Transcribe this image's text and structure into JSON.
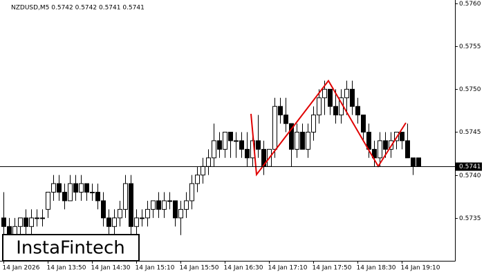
{
  "chart_data": {
    "type": "candlestick",
    "title": "NZDUSD,M5  0.5742 0.5742 0.5741 0.5741",
    "watermark": "InstaFintech",
    "categories": [
      "14 Jan 2026",
      null,
      null,
      null,
      null,
      null,
      null,
      null,
      "14 Jan 13:50",
      null,
      null,
      null,
      null,
      null,
      null,
      null,
      "14 Jan 14:30",
      null,
      null,
      null,
      null,
      null,
      null,
      null,
      "14 Jan 15:10",
      null,
      null,
      null,
      null,
      null,
      null,
      null,
      "14 Jan 15:50",
      null,
      null,
      null,
      null,
      null,
      null,
      null,
      "14 Jan 16:30",
      null,
      null,
      null,
      null,
      null,
      null,
      null,
      "14 Jan 17:10",
      null,
      null,
      null,
      null,
      null,
      null,
      null,
      "14 Jan 17:50",
      null,
      null,
      null,
      null,
      null,
      null,
      null,
      "14 Jan 18:30",
      null,
      null,
      null,
      null,
      null,
      null,
      null,
      "14 Jan 19:10",
      null,
      null,
      null
    ],
    "open": [
      0.5735,
      0.5734,
      0.5733,
      0.5734,
      0.5735,
      0.5734,
      0.5735,
      0.5735,
      0.5736,
      0.5738,
      0.5739,
      0.5738,
      0.5737,
      0.5739,
      0.5738,
      0.5739,
      0.5738,
      0.5738,
      0.5737,
      0.5735,
      0.5734,
      0.5735,
      0.5736,
      0.5739,
      0.5734,
      0.5735,
      0.5735,
      0.5736,
      0.5737,
      0.5736,
      0.5737,
      0.5737,
      0.5735,
      0.5736,
      0.5737,
      0.5739,
      0.574,
      0.5741,
      0.5742,
      0.5744,
      0.5743,
      0.5745,
      0.5744,
      0.5744,
      0.5743,
      0.5742,
      0.5744,
      0.5743,
      0.5741,
      0.5743,
      0.5748,
      0.5747,
      0.5746,
      0.5743,
      0.5745,
      0.5743,
      0.5745,
      0.5747,
      0.5749,
      0.575,
      0.5748,
      0.5747,
      0.5749,
      0.575,
      0.5748,
      0.5747,
      0.5745,
      0.5743,
      0.5742,
      0.5744,
      0.5743,
      0.5744,
      0.5745,
      0.5744,
      0.5742,
      0.5742
    ],
    "high": [
      0.5738,
      0.5735,
      0.5735,
      0.5735,
      0.5736,
      0.5736,
      0.5736,
      0.5736,
      0.5738,
      0.574,
      0.574,
      0.5739,
      0.574,
      0.574,
      0.574,
      0.5739,
      0.5739,
      0.5739,
      0.5738,
      0.5736,
      0.5736,
      0.5737,
      0.574,
      0.574,
      0.5736,
      0.5736,
      0.5737,
      0.5737,
      0.5738,
      0.5738,
      0.5738,
      0.5737,
      0.5737,
      0.5738,
      0.574,
      0.5741,
      0.5742,
      0.5743,
      0.5746,
      0.5745,
      0.5745,
      0.5745,
      0.5745,
      0.5745,
      0.5745,
      0.5745,
      0.5747,
      0.5744,
      0.5743,
      0.5749,
      0.5749,
      0.5749,
      0.5746,
      0.5746,
      0.5746,
      0.5746,
      0.5748,
      0.575,
      0.5751,
      0.575,
      0.575,
      0.575,
      0.5751,
      0.5751,
      0.5749,
      0.5747,
      0.5746,
      0.5744,
      0.5745,
      0.5745,
      0.5745,
      0.5745,
      0.5745,
      0.5746,
      0.5742,
      0.5742
    ],
    "low": [
      0.5732,
      0.5732,
      0.5732,
      0.5733,
      0.5733,
      0.5733,
      0.5734,
      0.5734,
      0.5735,
      0.5737,
      0.5737,
      0.5736,
      0.5737,
      0.5737,
      0.5737,
      0.5737,
      0.5737,
      0.5736,
      0.5734,
      0.5733,
      0.5733,
      0.5734,
      0.5735,
      0.5733,
      0.5733,
      0.5734,
      0.5734,
      0.5735,
      0.5735,
      0.5735,
      0.5736,
      0.5734,
      0.5733,
      0.5735,
      0.5736,
      0.5738,
      0.5739,
      0.574,
      0.5741,
      0.5742,
      0.5742,
      0.5742,
      0.5742,
      0.5742,
      0.5741,
      0.5741,
      0.5742,
      0.574,
      0.5741,
      0.5742,
      0.5746,
      0.5745,
      0.5741,
      0.5742,
      0.5743,
      0.5742,
      0.5744,
      0.5746,
      0.5747,
      0.5747,
      0.5746,
      0.5746,
      0.5747,
      0.5747,
      0.5746,
      0.5744,
      0.5742,
      0.5741,
      0.5741,
      0.5742,
      0.5742,
      0.5743,
      0.5743,
      0.5742,
      0.574,
      0.5741
    ],
    "close": [
      0.5734,
      0.5733,
      0.5734,
      0.5735,
      0.5734,
      0.5735,
      0.5735,
      0.5735,
      0.5738,
      0.5739,
      0.5738,
      0.5737,
      0.5739,
      0.5738,
      0.5739,
      0.5738,
      0.5738,
      0.5737,
      0.5735,
      0.5734,
      0.5735,
      0.5736,
      0.5739,
      0.5734,
      0.5735,
      0.5735,
      0.5736,
      0.5737,
      0.5736,
      0.5737,
      0.5737,
      0.5735,
      0.5736,
      0.5737,
      0.5739,
      0.574,
      0.5741,
      0.5742,
      0.5744,
      0.5743,
      0.5745,
      0.5744,
      0.5744,
      0.5743,
      0.5742,
      0.5744,
      0.5743,
      0.5741,
      0.5743,
      0.5748,
      0.5747,
      0.5746,
      0.5743,
      0.5745,
      0.5743,
      0.5745,
      0.5747,
      0.5749,
      0.575,
      0.5748,
      0.5747,
      0.5749,
      0.575,
      0.5748,
      0.5747,
      0.5745,
      0.5743,
      0.5742,
      0.5744,
      0.5743,
      0.5744,
      0.5745,
      0.5744,
      0.5742,
      0.5741,
      0.5741
    ],
    "ylim": [
      0.573,
      0.576
    ],
    "yticks": [
      0.5735,
      {
        "value": 0.574,
        "label": "0.5740"
      },
      0.5745,
      {
        "value": 0.575,
        "label": "0.5750"
      },
      0.5755,
      {
        "value": 0.576,
        "label": "0.5760"
      }
    ],
    "current_price": 0.5741,
    "up_color": "#ffffff",
    "down_color": "#000000",
    "pattern_color": "#e00000"
  }
}
